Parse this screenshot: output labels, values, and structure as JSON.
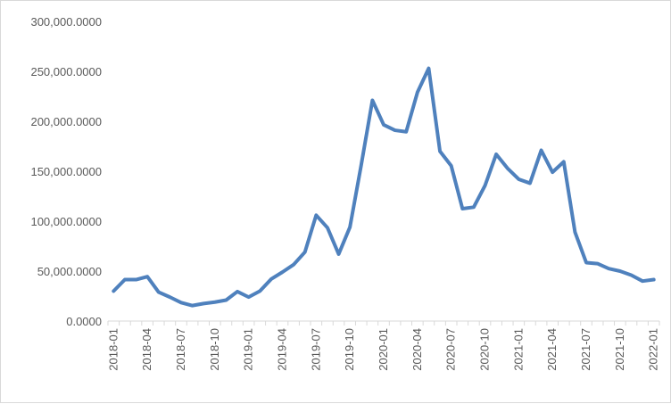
{
  "chart_data": {
    "type": "line",
    "title": "",
    "xlabel": "",
    "ylabel": "",
    "ylim": [
      0,
      300000
    ],
    "grid": false,
    "legend": "none",
    "line_color": "#4f81bd",
    "y_ticks": [
      "0.0000",
      "50,000.0000",
      "100,000.0000",
      "150,000.0000",
      "200,000.0000",
      "250,000.0000",
      "300,000.0000"
    ],
    "x_tick_labels": [
      "2018-01",
      "2018-04",
      "2018-07",
      "2018-10",
      "2019-01",
      "2019-04",
      "2019-07",
      "2019-10",
      "2020-01",
      "2020-04",
      "2020-07",
      "2020-10",
      "2021-01",
      "2021-04",
      "2021-07",
      "2021-10",
      "2022-01"
    ],
    "x": [
      "2018-01",
      "2018-02",
      "2018-03",
      "2018-04",
      "2018-05",
      "2018-06",
      "2018-07",
      "2018-08",
      "2018-09",
      "2018-10",
      "2018-11",
      "2018-12",
      "2019-01",
      "2019-02",
      "2019-03",
      "2019-04",
      "2019-05",
      "2019-06",
      "2019-07",
      "2019-08",
      "2019-09",
      "2019-10",
      "2019-11",
      "2019-12",
      "2020-01",
      "2020-02",
      "2020-03",
      "2020-04",
      "2020-05",
      "2020-06",
      "2020-07",
      "2020-08",
      "2020-09",
      "2020-10",
      "2020-11",
      "2020-12",
      "2021-01",
      "2021-02",
      "2021-03",
      "2021-04",
      "2021-05",
      "2021-06",
      "2021-07",
      "2021-08",
      "2021-09",
      "2021-10",
      "2021-11",
      "2021-12",
      "2022-01"
    ],
    "series": [
      {
        "values": [
          30000,
          41500,
          41500,
          44500,
          29000,
          24000,
          18500,
          15500,
          17500,
          19000,
          21000,
          29500,
          24000,
          30000,
          42000,
          49000,
          56500,
          69000,
          106000,
          93500,
          67000,
          94000,
          156000,
          221000,
          196500,
          191000,
          189500,
          229000,
          253000,
          170000,
          155500,
          112500,
          114000,
          135500,
          167000,
          153000,
          142000,
          138000,
          171000,
          149000,
          159500,
          89000,
          58500,
          57500,
          52500,
          50000,
          46000,
          40000,
          41500
        ]
      }
    ]
  }
}
